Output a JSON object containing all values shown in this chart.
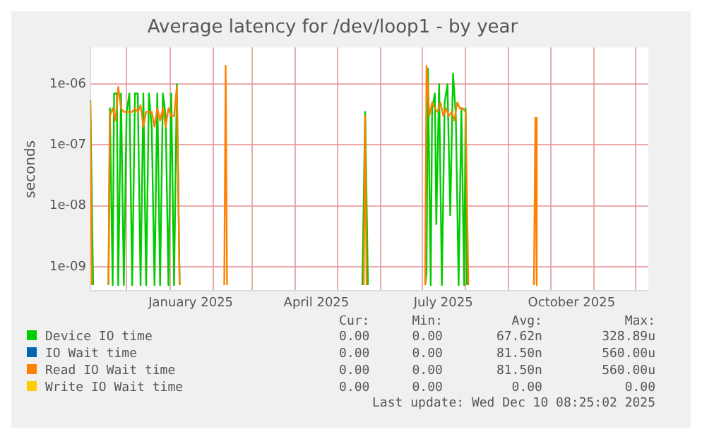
{
  "chart_data": {
    "type": "line",
    "title": "Average latency for /dev/loop1 - by year",
    "ylabel": "seconds",
    "log": "y",
    "grid": true,
    "legend": "bottom",
    "marker": "none",
    "line_style": "solid",
    "xlim": [
      "2024-11-05",
      "2025-12-10"
    ],
    "xticks": [
      {
        "value": "2024-12-01",
        "label": null
      },
      {
        "value": "2025-01-01",
        "label": null
      },
      {
        "value": "2025-01-16",
        "label": "January 2025"
      },
      {
        "value": "2025-02-01",
        "label": null
      },
      {
        "value": "2025-03-01",
        "label": null
      },
      {
        "value": "2025-04-01",
        "label": null
      },
      {
        "value": "2025-04-16",
        "label": "April 2025"
      },
      {
        "value": "2025-05-01",
        "label": null
      },
      {
        "value": "2025-06-01",
        "label": null
      },
      {
        "value": "2025-07-01",
        "label": null
      },
      {
        "value": "2025-07-16",
        "label": "July 2025"
      },
      {
        "value": "2025-08-01",
        "label": null
      },
      {
        "value": "2025-09-01",
        "label": null
      },
      {
        "value": "2025-10-01",
        "label": null
      },
      {
        "value": "2025-10-16",
        "label": "October 2025"
      },
      {
        "value": "2025-11-01",
        "label": null
      },
      {
        "value": "2025-12-01",
        "label": null
      }
    ],
    "ylim": [
      4e-10,
      4e-06
    ],
    "yticks": [
      {
        "value": 1e-09,
        "label": "1e-09"
      },
      {
        "value": 1e-08,
        "label": "1e-08"
      },
      {
        "value": 1e-07,
        "label": "1e-07"
      },
      {
        "value": 1e-06,
        "label": "1e-06"
      }
    ],
    "series": [
      {
        "name": "Device IO time",
        "color": "#00cc00",
        "x": [
          "2024-11-05",
          "2024-11-07",
          "2024-11-12",
          "2024-11-18",
          "2024-11-19",
          "2024-11-21",
          "2024-11-22",
          "2024-11-24",
          "2024-11-25",
          "2024-11-27",
          "2024-11-29",
          "2024-12-01",
          "2024-12-03",
          "2024-12-05",
          "2024-12-07",
          "2024-12-09",
          "2024-12-11",
          "2024-12-13",
          "2024-12-15",
          "2024-12-17",
          "2024-12-19",
          "2024-12-21",
          "2024-12-23",
          "2024-12-25",
          "2024-12-27",
          "2024-12-29",
          "2024-12-31",
          "2025-01-02",
          "2025-01-04",
          "2025-01-06",
          "2025-01-08",
          "2025-03-15",
          "2025-05-19",
          "2025-05-21",
          "2025-05-23",
          "2025-06-15",
          "2025-07-03",
          "2025-07-04",
          "2025-07-05",
          "2025-07-07",
          "2025-07-08",
          "2025-07-10",
          "2025-07-11",
          "2025-07-13",
          "2025-07-15",
          "2025-07-17",
          "2025-07-19",
          "2025-07-21",
          "2025-07-23",
          "2025-07-25",
          "2025-07-27",
          "2025-07-29",
          "2025-07-31",
          "2025-08-01",
          "2025-08-02"
        ],
        "values": [
          5.5e-07,
          5e-10,
          null,
          5e-10,
          4e-07,
          5e-10,
          7e-07,
          7e-07,
          5e-10,
          7e-07,
          5e-10,
          3.5e-07,
          7e-07,
          5e-10,
          7e-07,
          7e-07,
          5e-10,
          7e-07,
          5e-10,
          7e-07,
          2e-07,
          5e-10,
          7e-07,
          5e-10,
          7e-07,
          3e-07,
          5e-10,
          7e-07,
          5e-10,
          1e-06,
          5e-10,
          null,
          5e-10,
          3.5e-07,
          5e-10,
          null,
          5e-10,
          8e-10,
          1.8e-06,
          5e-10,
          4e-07,
          7e-07,
          5e-09,
          1e-06,
          5e-10,
          5e-07,
          1e-06,
          7e-09,
          1.5e-06,
          3e-07,
          5e-10,
          4e-07,
          5e-10,
          4e-07,
          5e-10
        ]
      },
      {
        "name": "IO Wait time",
        "color": "#0066b3"
      },
      {
        "name": "Read IO Wait time",
        "color": "#ff8000",
        "x": [
          "2024-11-05",
          "2024-11-06",
          "2024-11-12",
          "2024-11-18",
          "2024-11-19",
          "2024-11-21",
          "2024-11-23",
          "2024-11-25",
          "2024-11-27",
          "2024-11-29",
          "2024-12-01",
          "2024-12-03",
          "2024-12-05",
          "2024-12-07",
          "2024-12-09",
          "2024-12-11",
          "2024-12-13",
          "2024-12-15",
          "2024-12-17",
          "2024-12-19",
          "2024-12-21",
          "2024-12-23",
          "2024-12-25",
          "2024-12-27",
          "2024-12-29",
          "2024-12-31",
          "2025-01-02",
          "2025-01-04",
          "2025-01-06",
          "2025-01-08",
          "2025-01-25",
          "2025-02-09",
          "2025-02-10",
          "2025-02-11",
          "2025-04-01",
          "2025-05-20",
          "2025-05-21",
          "2025-05-22",
          "2025-06-15",
          "2025-07-03",
          "2025-07-04",
          "2025-07-06",
          "2025-07-08",
          "2025-07-10",
          "2025-07-12",
          "2025-07-14",
          "2025-07-16",
          "2025-07-18",
          "2025-07-20",
          "2025-07-22",
          "2025-07-24",
          "2025-07-26",
          "2025-07-28",
          "2025-07-30",
          "2025-08-01",
          "2025-08-03",
          "2025-09-01",
          "2025-09-19",
          "2025-09-20",
          "2025-09-21"
        ],
        "values": [
          5e-07,
          5e-10,
          null,
          5e-10,
          3e-07,
          4e-07,
          2.5e-07,
          9e-07,
          4e-07,
          3.5e-07,
          3.5e-07,
          3.5e-07,
          3.5e-07,
          4e-07,
          3.5e-07,
          4.5e-07,
          2e-07,
          3.5e-07,
          3.5e-07,
          3.5e-07,
          2e-07,
          4e-07,
          2.5e-07,
          4e-07,
          2e-07,
          4e-07,
          3e-07,
          3e-07,
          9e-07,
          5e-10,
          null,
          5e-10,
          2e-06,
          5e-10,
          null,
          5e-10,
          3e-07,
          5e-10,
          null,
          5e-10,
          2e-06,
          3e-07,
          5e-07,
          4e-07,
          3.5e-07,
          5e-07,
          3e-07,
          4e-07,
          3e-07,
          3.5e-07,
          2.5e-07,
          5e-07,
          4e-07,
          4e-07,
          3.5e-07,
          5e-10,
          null,
          5e-10,
          2.8e-07,
          5e-10
        ]
      },
      {
        "name": "Write IO Wait time",
        "color": "#ffcc00"
      }
    ],
    "annotations": [
      "Cur:",
      "Min:",
      "Avg:",
      "Max:",
      "0.00",
      "0.00",
      "67.62n",
      "328.89u",
      "0.00",
      "0.00",
      "81.50n",
      "560.00u",
      "0.00",
      "0.00",
      "81.50n",
      "560.00u",
      "0.00",
      "0.00",
      "0.00",
      "0.00",
      "Last update: Wed Dec 10 08:25:02 2025"
    ]
  }
}
